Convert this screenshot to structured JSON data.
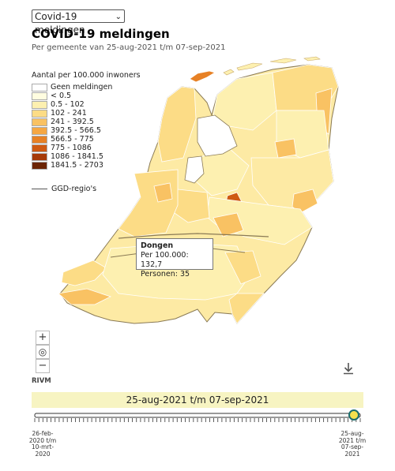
{
  "selector": {
    "value": "Covid-19 meldingen"
  },
  "title": "COVID-19 meldingen",
  "subtitle": "Per gemeente van 25-aug-2021 t/m 07-sep-2021",
  "legend": {
    "title": "Aantal per 100.000 inwoners",
    "items": [
      {
        "label": "Geen meldingen",
        "color": "#ffffff"
      },
      {
        "label": "< 0.5",
        "color": "#fffde0"
      },
      {
        "label": "0.5 - 102",
        "color": "#fdf0b0"
      },
      {
        "label": "102 - 241",
        "color": "#fcdc86"
      },
      {
        "label": "241 - 392.5",
        "color": "#f9c263"
      },
      {
        "label": "392.5 - 566.5",
        "color": "#f5a743"
      },
      {
        "label": "566.5 - 775",
        "color": "#e78125"
      },
      {
        "label": "775 - 1086",
        "color": "#cf5a12"
      },
      {
        "label": "1086 - 1841.5",
        "color": "#a63a08"
      },
      {
        "label": "1841.5 - 2703",
        "color": "#6b2404"
      }
    ],
    "region_label": "GGD-regio's"
  },
  "tooltip": {
    "name": "Dongen",
    "per100k": "Per 100.000: 132,7",
    "persons": "Personen: 35"
  },
  "source": "RIVM",
  "range_label": "25-aug-2021 t/m 07-sep-2021",
  "timeline": {
    "start_label": "26-feb-2020 t/m 10-mrt-2020",
    "end_label": "25-aug-2021 t/m 07-sep-2021",
    "position": 1.0
  }
}
